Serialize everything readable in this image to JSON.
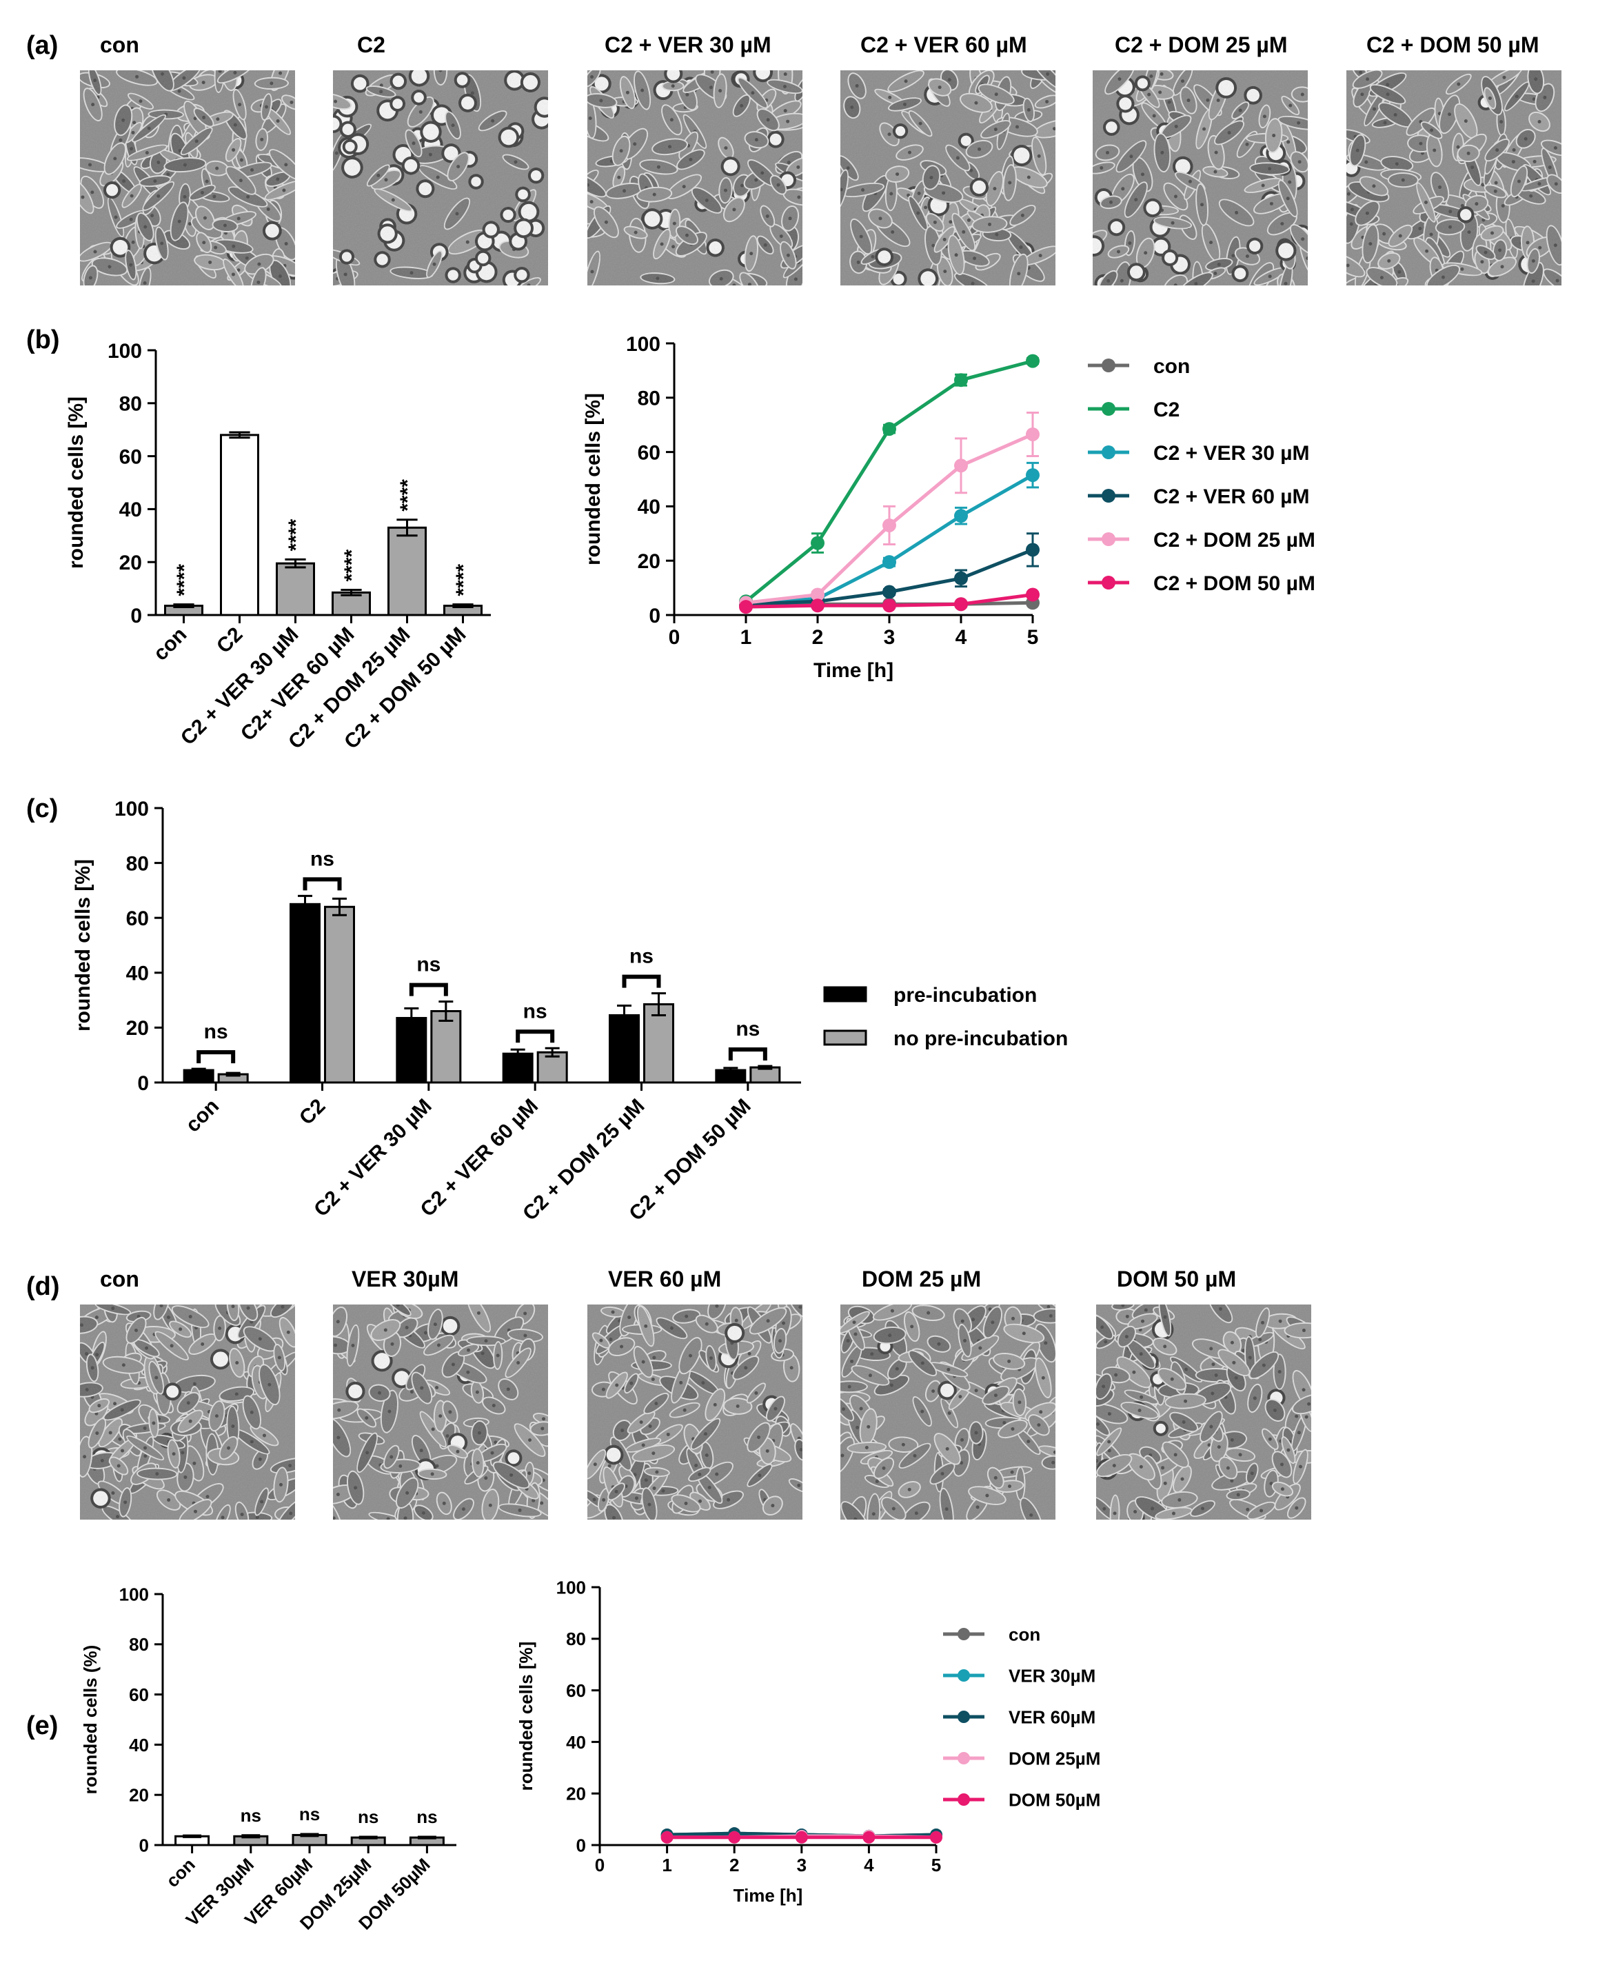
{
  "panels": {
    "a": {
      "letter": "(a)",
      "labels": [
        "con",
        "C2",
        "C2 + VER 30 µM",
        "C2 + VER 60 µM",
        "C2 + DOM 25 µM",
        "C2 + DOM 50 µM"
      ],
      "densities": [
        0.9,
        0.55,
        0.7,
        0.7,
        0.7,
        0.85
      ],
      "rounded_fraction": [
        0.05,
        0.7,
        0.2,
        0.1,
        0.3,
        0.04
      ]
    },
    "d": {
      "letter": "(d)",
      "labels": [
        "con",
        "VER 30µM",
        "VER 60 µM",
        "DOM 25 µM",
        "DOM 50 µM"
      ],
      "densities": [
        0.85,
        0.75,
        0.75,
        0.7,
        0.85
      ],
      "rounded_fraction": [
        0.05,
        0.05,
        0.05,
        0.04,
        0.04
      ]
    },
    "b": {
      "letter": "(b)"
    },
    "c": {
      "letter": "(c)"
    },
    "e": {
      "letter": "(e)"
    }
  },
  "colors": {
    "con": "#6b6b6b",
    "C2": "#17a05d",
    "ver30": "#1aa0b4",
    "ver60": "#0e4f62",
    "dom25": "#f5a0c6",
    "dom50": "#e8196e",
    "grey_bar": "#a6a6a6",
    "black_bar": "#000000"
  },
  "chart_data": [
    {
      "id": "b-bar",
      "type": "bar",
      "ylabel": "rounded cells [%]",
      "ylim": [
        0,
        100
      ],
      "yticks": [
        0,
        20,
        40,
        60,
        80,
        100
      ],
      "categories": [
        "con",
        "C2",
        "C2 + VER 30 µM",
        "C2+ VER 60 µM",
        "C2 + DOM 25 µM",
        "C2 + DOM 50 µM"
      ],
      "values": [
        3.5,
        68,
        19.5,
        8.5,
        33,
        3.5
      ],
      "errors": [
        0.5,
        1,
        1.5,
        1,
        3,
        0.5
      ],
      "fills": [
        "grey",
        "white",
        "grey",
        "grey",
        "grey",
        "grey"
      ],
      "annotations": [
        "****",
        "",
        "****",
        "****",
        "****",
        "****"
      ]
    },
    {
      "id": "b-line",
      "type": "line",
      "xlabel": "Time [h]",
      "ylabel": "rounded cells [%]",
      "xlim": [
        0,
        5
      ],
      "ylim": [
        0,
        100
      ],
      "xticks": [
        0,
        1,
        2,
        3,
        4,
        5
      ],
      "yticks": [
        0,
        20,
        40,
        60,
        80,
        100
      ],
      "legend": "right",
      "x": [
        1,
        2,
        3,
        4,
        5
      ],
      "series": [
        {
          "name": "con",
          "color_key": "con",
          "values": [
            4,
            4,
            4,
            4,
            4.5
          ],
          "errors": [
            0,
            0,
            0,
            0,
            0
          ]
        },
        {
          "name": "C2",
          "color_key": "C2",
          "values": [
            5,
            26.5,
            68.5,
            86.5,
            93.5
          ],
          "errors": [
            0.5,
            3.5,
            1.5,
            2,
            1
          ]
        },
        {
          "name": "C2 + VER 30 µM",
          "color_key": "ver30",
          "values": [
            4.5,
            6,
            19.5,
            36.5,
            51.5
          ],
          "errors": [
            0.5,
            1,
            1.5,
            3,
            4.5
          ]
        },
        {
          "name": "C2 + VER 60 µM",
          "color_key": "ver60",
          "values": [
            4,
            5,
            8.5,
            13.5,
            24
          ],
          "errors": [
            0.5,
            0.5,
            1,
            3,
            6
          ]
        },
        {
          "name": "C2 + DOM 25 µM",
          "color_key": "dom25",
          "values": [
            4.5,
            7.5,
            33,
            55,
            66.5
          ],
          "errors": [
            0.5,
            1,
            7,
            10,
            8
          ]
        },
        {
          "name": "C2 + DOM 50 µM",
          "color_key": "dom50",
          "values": [
            3,
            3.5,
            3.5,
            4,
            7.5
          ],
          "errors": [
            0.3,
            0.3,
            0.3,
            0.5,
            0.8
          ]
        }
      ]
    },
    {
      "id": "c-bar",
      "type": "bar",
      "ylabel": "rounded cells [%]",
      "ylim": [
        0,
        100
      ],
      "yticks": [
        0,
        20,
        40,
        60,
        80,
        100
      ],
      "legend": "right",
      "categories": [
        "con",
        "C2",
        "C2 + VER 30 µM",
        "C2 + VER 60 µM",
        "C2 + DOM 25 µM",
        "C2 + DOM 50 µM"
      ],
      "series": [
        {
          "name": "pre-incubation",
          "color_key": "black_bar",
          "values": [
            4.5,
            65,
            23.5,
            10.5,
            24.5,
            4.5
          ],
          "errors": [
            0.5,
            3,
            3.5,
            1.5,
            3.5,
            0.8
          ]
        },
        {
          "name": "no pre-incubation",
          "color_key": "grey_bar",
          "values": [
            3,
            64,
            26,
            11,
            28.5,
            5.5
          ],
          "errors": [
            0.5,
            3,
            3.5,
            1.5,
            4,
            0.5
          ]
        }
      ],
      "annotations": [
        "ns",
        "ns",
        "ns",
        "ns",
        "ns",
        "ns"
      ]
    },
    {
      "id": "e-bar",
      "type": "bar",
      "ylabel": "rounded cells (%)",
      "ylim": [
        0,
        100
      ],
      "yticks": [
        0,
        20,
        40,
        60,
        80,
        100
      ],
      "categories": [
        "con",
        "VER 30µM",
        "VER 60µM",
        "DOM 25µM",
        "DOM 50µM"
      ],
      "values": [
        3.5,
        3.5,
        4,
        3,
        3
      ],
      "errors": [
        0.3,
        0.4,
        0.4,
        0.3,
        0.3
      ],
      "fills": [
        "white",
        "grey",
        "grey",
        "grey",
        "grey"
      ],
      "annotations": [
        "",
        "ns",
        "ns",
        "ns",
        "ns"
      ]
    },
    {
      "id": "e-line",
      "type": "line",
      "xlabel": "Time [h]",
      "ylabel": "rounded cells [%]",
      "xlim": [
        0,
        5
      ],
      "ylim": [
        0,
        100
      ],
      "xticks": [
        0,
        1,
        2,
        3,
        4,
        5
      ],
      "yticks": [
        0,
        20,
        40,
        60,
        80,
        100
      ],
      "legend": "right",
      "x": [
        1,
        2,
        3,
        4,
        5
      ],
      "series": [
        {
          "name": "con",
          "color_key": "con",
          "values": [
            4,
            4.5,
            4,
            3.5,
            4
          ],
          "errors": [
            0,
            0,
            0,
            0,
            0
          ]
        },
        {
          "name": "VER 30µM",
          "color_key": "ver30",
          "values": [
            3.5,
            4,
            4,
            3.5,
            3.5
          ],
          "errors": [
            0,
            0,
            0,
            0,
            0
          ]
        },
        {
          "name": "VER 60µM",
          "color_key": "ver60",
          "values": [
            4,
            4.5,
            4,
            3.5,
            4
          ],
          "errors": [
            0,
            0,
            0,
            0,
            0
          ]
        },
        {
          "name": "DOM 25µM",
          "color_key": "dom25",
          "values": [
            3,
            3,
            3.5,
            3.5,
            3
          ],
          "errors": [
            0,
            0,
            0,
            0,
            0
          ]
        },
        {
          "name": "DOM 50µM",
          "color_key": "dom50",
          "values": [
            3,
            3,
            3,
            3,
            3
          ],
          "errors": [
            0,
            0,
            0,
            0,
            0
          ]
        }
      ]
    }
  ]
}
